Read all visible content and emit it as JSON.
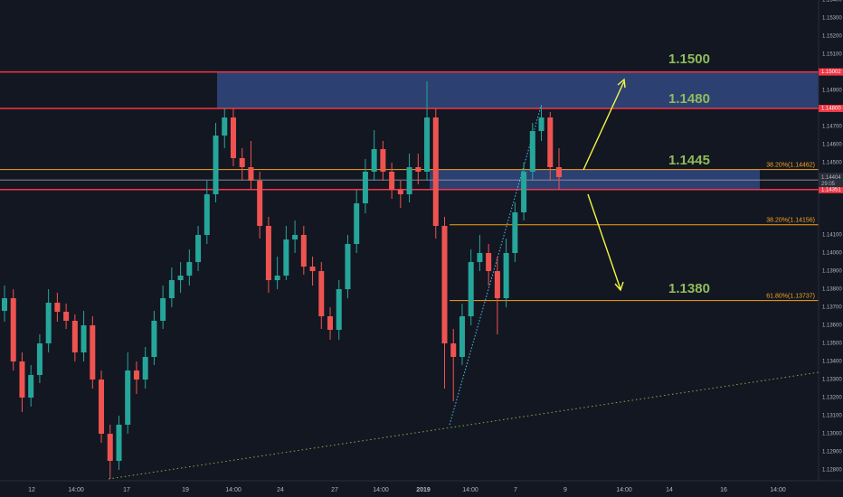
{
  "chart_data": {
    "type": "candlestick",
    "up_color": "#26a69a",
    "down_color": "#ef5350",
    "ylim": [
      1.1274,
      1.154
    ],
    "yticks": [
      {
        "value": 1.154,
        "label": "1.15400"
      },
      {
        "value": 1.153,
        "label": "1.15300"
      },
      {
        "value": 1.152,
        "label": "1.15200"
      },
      {
        "value": 1.151,
        "label": "1.15100"
      },
      {
        "value": 1.149,
        "label": "1.14900"
      },
      {
        "value": 1.147,
        "label": "1.14700"
      },
      {
        "value": 1.146,
        "label": "1.14600"
      },
      {
        "value": 1.145,
        "label": "1.14500"
      },
      {
        "value": 1.141,
        "label": "1.14100"
      },
      {
        "value": 1.14,
        "label": "1.14000"
      },
      {
        "value": 1.139,
        "label": "1.13900"
      },
      {
        "value": 1.138,
        "label": "1.13800"
      },
      {
        "value": 1.137,
        "label": "1.13700"
      },
      {
        "value": 1.136,
        "label": "1.13600"
      },
      {
        "value": 1.135,
        "label": "1.13500"
      },
      {
        "value": 1.134,
        "label": "1.13400"
      },
      {
        "value": 1.133,
        "label": "1.13300"
      },
      {
        "value": 1.132,
        "label": "1.13200"
      },
      {
        "value": 1.131,
        "label": "1.13100"
      },
      {
        "value": 1.13,
        "label": "1.13000"
      },
      {
        "value": 1.129,
        "label": "1.12900"
      },
      {
        "value": 1.128,
        "label": "1.12800"
      }
    ],
    "grid": true,
    "x_labels": [
      "12",
      "14:00",
      "17",
      "19",
      "14:00",
      "24",
      "27",
      "14:00",
      "2019",
      "14:00",
      "7",
      "9",
      "14:00",
      "14",
      "16",
      "14:00"
    ],
    "open": [
      1.1368,
      1.1375,
      1.134,
      1.132,
      1.13325,
      1.135,
      1.13725,
      1.13675,
      1.13625,
      1.1345,
      1.136,
      1.133,
      1.13,
      1.1285,
      1.1305,
      1.1335,
      1.133,
      1.13425,
      1.13625,
      1.1375,
      1.1385,
      1.13875,
      1.1395,
      1.141,
      1.14325,
      1.1465,
      1.1475,
      1.14525,
      1.14475,
      1.144,
      1.1415,
      1.1385,
      1.13875,
      1.14075,
      1.141,
      1.13925,
      1.139,
      1.1365,
      1.13575,
      1.138,
      1.1405,
      1.14275,
      1.1445,
      1.14575,
      1.1445,
      1.1435,
      1.14325,
      1.14475,
      1.1445,
      1.1475,
      1.1415,
      1.135,
      1.13425,
      1.1365,
      1.1395,
      1.14,
      1.139,
      1.1375,
      1.14,
      1.14225,
      1.1445,
      1.14675,
      1.1475,
      1.14475
    ],
    "high": [
      1.1382,
      1.138,
      1.1345,
      1.1338,
      1.1355,
      1.138,
      1.1378,
      1.1372,
      1.1366,
      1.1368,
      1.1365,
      1.1335,
      1.1305,
      1.131,
      1.1345,
      1.134,
      1.1348,
      1.1368,
      1.1382,
      1.1392,
      1.1395,
      1.1402,
      1.1415,
      1.144,
      1.1472,
      1.148,
      1.148,
      1.1458,
      1.1462,
      1.1445,
      1.142,
      1.1398,
      1.1415,
      1.1418,
      1.1415,
      1.1398,
      1.1395,
      1.137,
      1.1385,
      1.141,
      1.1435,
      1.1452,
      1.1468,
      1.1462,
      1.145,
      1.144,
      1.1455,
      1.1455,
      1.1495,
      1.148,
      1.142,
      1.1358,
      1.1372,
      1.1402,
      1.141,
      1.1405,
      1.1398,
      1.1408,
      1.1428,
      1.145,
      1.1472,
      1.1482,
      1.1478,
      1.1458
    ],
    "low": [
      1.1362,
      1.1335,
      1.1312,
      1.1315,
      1.1328,
      1.1345,
      1.1362,
      1.1358,
      1.134,
      1.134,
      1.1325,
      1.1295,
      1.1275,
      1.128,
      1.13,
      1.1322,
      1.1325,
      1.1338,
      1.1358,
      1.137,
      1.1378,
      1.1382,
      1.139,
      1.1405,
      1.1428,
      1.1458,
      1.1448,
      1.144,
      1.1435,
      1.1408,
      1.1378,
      1.138,
      1.1385,
      1.14,
      1.1388,
      1.1382,
      1.1358,
      1.1352,
      1.1352,
      1.1375,
      1.14,
      1.1422,
      1.144,
      1.144,
      1.143,
      1.1425,
      1.1428,
      1.1438,
      1.144,
      1.1408,
      1.1325,
      1.1318,
      1.1338,
      1.136,
      1.139,
      1.1382,
      1.1355,
      1.137,
      1.1395,
      1.1418,
      1.144,
      1.1462,
      1.144,
      1.1435
    ],
    "close": [
      1.1375,
      1.134,
      1.132,
      1.13325,
      1.135,
      1.13725,
      1.13675,
      1.13625,
      1.1345,
      1.136,
      1.133,
      1.13,
      1.1285,
      1.1305,
      1.1335,
      1.133,
      1.13425,
      1.13625,
      1.1375,
      1.1385,
      1.13875,
      1.1395,
      1.141,
      1.14325,
      1.1465,
      1.1475,
      1.14525,
      1.14475,
      1.144,
      1.1415,
      1.1385,
      1.13875,
      1.14075,
      1.141,
      1.13925,
      1.139,
      1.1365,
      1.13575,
      1.138,
      1.1405,
      1.14275,
      1.1445,
      1.14575,
      1.1445,
      1.1435,
      1.14325,
      1.14475,
      1.1445,
      1.1475,
      1.1415,
      1.135,
      1.13425,
      1.1365,
      1.1395,
      1.14,
      1.139,
      1.1375,
      1.14,
      1.14225,
      1.1445,
      1.14675,
      1.1475,
      1.14475,
      1.1442
    ],
    "levels": [
      {
        "value": 1.15002,
        "label": "1.15002",
        "color": "#f23645"
      },
      {
        "value": 1.148,
        "label": "1.14800",
        "color": "#f23645"
      },
      {
        "value": 1.14351,
        "label": "1.14351",
        "color": "#f23645"
      }
    ],
    "current_price": {
      "value": 1.14404,
      "label": "1.14404",
      "countdown": "29:05"
    },
    "fib_levels": [
      {
        "value": 1.14462,
        "label": "38.20%(1.14462)"
      },
      {
        "value": 1.14156,
        "label": "38.20%(1.14156)"
      },
      {
        "value": 1.13737,
        "label": "61.80%(1.13737)"
      }
    ],
    "annotations": [
      "1.1500",
      "1.1480",
      "1.1445",
      "1.1380"
    ]
  }
}
